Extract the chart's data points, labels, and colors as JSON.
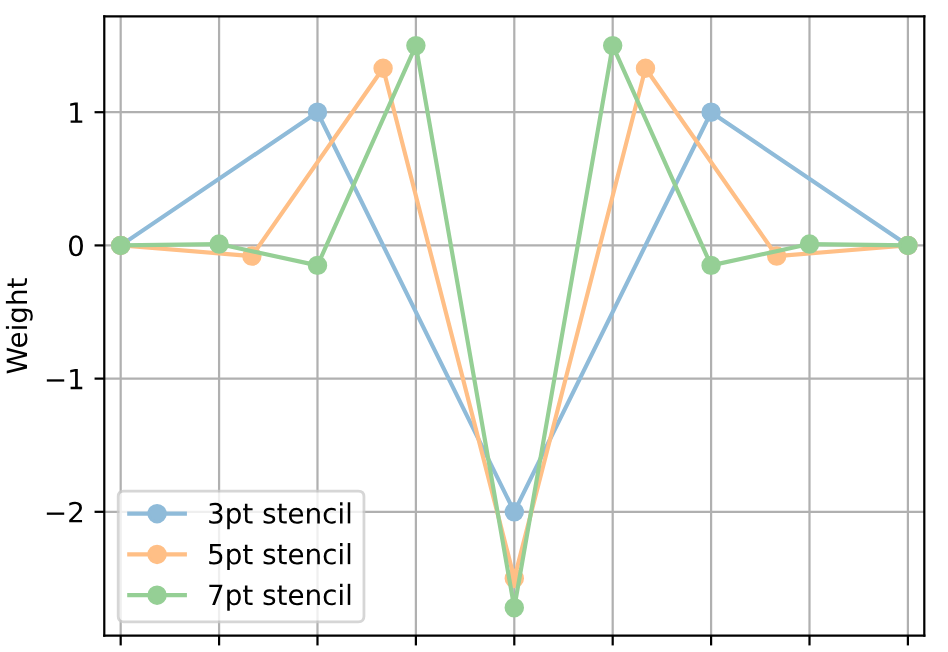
{
  "chart_data": {
    "type": "line",
    "ylabel": "Weight",
    "categories": [
      null,
      null,
      null,
      null,
      null,
      null,
      null,
      null,
      null,
      null,
      null,
      null,
      null,
      null,
      null,
      null,
      null,
      null,
      null,
      null,
      null,
      null,
      null,
      null,
      null
    ],
    "series": [
      {
        "name": "3pt stencil",
        "color": "#8fbbd9",
        "values": [
          0,
          null,
          null,
          null,
          null,
          null,
          1,
          null,
          null,
          null,
          null,
          null,
          -2,
          null,
          null,
          null,
          null,
          null,
          1,
          null,
          null,
          null,
          null,
          null,
          0
        ]
      },
      {
        "name": "5pt stencil",
        "color": "#ffbf86",
        "values": [
          0,
          null,
          null,
          null,
          -0.08,
          null,
          null,
          null,
          1.33,
          null,
          null,
          null,
          -2.5,
          null,
          null,
          null,
          1.33,
          null,
          null,
          null,
          -0.08,
          null,
          null,
          null,
          0
        ]
      },
      {
        "name": "7pt stencil",
        "color": "#95cf95",
        "values": [
          0,
          null,
          null,
          0.01,
          null,
          null,
          -0.15,
          null,
          null,
          1.5,
          null,
          null,
          -2.72,
          null,
          null,
          1.5,
          null,
          null,
          -0.15,
          null,
          null,
          0.01,
          null,
          null,
          0
        ]
      }
    ],
    "ylim": [
      -2.93,
      1.72
    ],
    "yticks": [
      {
        "value": -2,
        "label": "−2"
      },
      {
        "value": -1,
        "label": "−1"
      },
      {
        "value": 0,
        "label": "0"
      },
      {
        "value": 1,
        "label": "1"
      }
    ],
    "tick_labels": "y",
    "grid": true,
    "legend": "bottom left",
    "marker": "circle",
    "line_style": "solid"
  }
}
